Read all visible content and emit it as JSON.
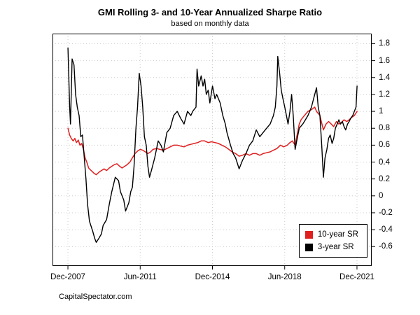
{
  "page": {
    "footer": "CapitalSpectator.com"
  },
  "chart_data": {
    "type": "line",
    "title": "GMI Rolling 3- and 10-Year Annualized Sharpe Ratio",
    "subtitle": "based on monthly data",
    "xlabel": "",
    "ylabel": "",
    "grid": true,
    "legend_position": "bottom-right",
    "xlim": [
      2007.17,
      2022.63
    ],
    "ylim": [
      -0.83,
      1.92
    ],
    "x_ticks": [
      {
        "label": "Dec-2007",
        "x": 2007.917
      },
      {
        "label": "Jun-2011",
        "x": 2011.417
      },
      {
        "label": "Dec-2014",
        "x": 2014.917
      },
      {
        "label": "Jun-2018",
        "x": 2018.417
      },
      {
        "label": "Dec-2021",
        "x": 2021.917
      }
    ],
    "y_ticks": [
      {
        "label": "1.8",
        "y": 1.8
      },
      {
        "label": "1.6",
        "y": 1.6
      },
      {
        "label": "1.4",
        "y": 1.4
      },
      {
        "label": "1.2",
        "y": 1.2
      },
      {
        "label": "1",
        "y": 1.0
      },
      {
        "label": "0.8",
        "y": 0.8
      },
      {
        "label": "0.6",
        "y": 0.6
      },
      {
        "label": "0.4",
        "y": 0.4
      },
      {
        "label": "0.2",
        "y": 0.2
      },
      {
        "label": "0",
        "y": 0.0
      },
      {
        "label": "-0.2",
        "y": -0.2
      },
      {
        "label": "-0.4",
        "y": -0.4
      },
      {
        "label": "-0.6",
        "y": -0.6
      }
    ],
    "series": [
      {
        "name": "10-year SR",
        "color": "#e01f1f",
        "line_width": 1.5,
        "x": [
          2007.92,
          2008.0,
          2008.08,
          2008.17,
          2008.25,
          2008.33,
          2008.42,
          2008.5,
          2008.58,
          2008.67,
          2008.75,
          2008.83,
          2008.92,
          2009.04,
          2009.17,
          2009.29,
          2009.42,
          2009.54,
          2009.67,
          2009.79,
          2009.92,
          2010.04,
          2010.17,
          2010.29,
          2010.42,
          2010.54,
          2010.67,
          2010.79,
          2010.92,
          2011.04,
          2011.17,
          2011.29,
          2011.42,
          2011.54,
          2011.67,
          2011.79,
          2011.92,
          2012.04,
          2012.21,
          2012.37,
          2012.54,
          2012.71,
          2012.87,
          2013.04,
          2013.21,
          2013.37,
          2013.54,
          2013.71,
          2013.87,
          2014.04,
          2014.21,
          2014.37,
          2014.54,
          2014.71,
          2014.87,
          2015.04,
          2015.21,
          2015.37,
          2015.54,
          2015.71,
          2015.87,
          2016.04,
          2016.21,
          2016.37,
          2016.54,
          2016.71,
          2016.87,
          2017.04,
          2017.21,
          2017.37,
          2017.54,
          2017.71,
          2017.87,
          2018.04,
          2018.21,
          2018.37,
          2018.54,
          2018.67,
          2018.79,
          2018.92,
          2019.04,
          2019.12,
          2019.21,
          2019.37,
          2019.54,
          2019.71,
          2019.87,
          2019.96,
          2020.12,
          2020.29,
          2020.42,
          2020.54,
          2020.67,
          2020.79,
          2020.92,
          2021.04,
          2021.17,
          2021.29,
          2021.42,
          2021.54,
          2021.67,
          2021.79,
          2021.92
        ],
        "values": [
          0.8,
          0.72,
          0.68,
          0.65,
          0.68,
          0.63,
          0.66,
          0.6,
          0.62,
          0.55,
          0.45,
          0.4,
          0.33,
          0.3,
          0.27,
          0.25,
          0.28,
          0.3,
          0.32,
          0.3,
          0.33,
          0.35,
          0.37,
          0.38,
          0.35,
          0.33,
          0.35,
          0.37,
          0.4,
          0.45,
          0.5,
          0.53,
          0.55,
          0.54,
          0.52,
          0.5,
          0.52,
          0.55,
          0.56,
          0.55,
          0.54,
          0.56,
          0.58,
          0.6,
          0.6,
          0.59,
          0.58,
          0.6,
          0.61,
          0.62,
          0.63,
          0.65,
          0.65,
          0.63,
          0.64,
          0.63,
          0.62,
          0.6,
          0.58,
          0.55,
          0.52,
          0.5,
          0.47,
          0.48,
          0.5,
          0.48,
          0.5,
          0.5,
          0.48,
          0.5,
          0.51,
          0.52,
          0.54,
          0.56,
          0.6,
          0.58,
          0.6,
          0.63,
          0.65,
          0.6,
          0.75,
          0.85,
          0.9,
          0.95,
          1.0,
          1.02,
          1.05,
          1.0,
          0.95,
          0.78,
          0.85,
          0.88,
          0.85,
          0.82,
          0.88,
          0.85,
          0.87,
          0.9,
          0.88,
          0.9,
          0.93,
          0.95,
          1.0
        ]
      },
      {
        "name": "3-year SR",
        "color": "#000000",
        "line_width": 1.4,
        "x": [
          2007.92,
          2008.0,
          2008.04,
          2008.12,
          2008.21,
          2008.29,
          2008.37,
          2008.46,
          2008.54,
          2008.62,
          2008.71,
          2008.79,
          2008.87,
          2008.96,
          2009.12,
          2009.21,
          2009.29,
          2009.42,
          2009.54,
          2009.62,
          2009.79,
          2009.92,
          2010.04,
          2010.21,
          2010.37,
          2010.46,
          2010.62,
          2010.71,
          2010.87,
          2010.96,
          2011.04,
          2011.12,
          2011.21,
          2011.29,
          2011.37,
          2011.46,
          2011.54,
          2011.62,
          2011.71,
          2011.79,
          2011.87,
          2011.96,
          2012.12,
          2012.29,
          2012.42,
          2012.54,
          2012.71,
          2012.87,
          2013.04,
          2013.21,
          2013.37,
          2013.54,
          2013.71,
          2013.87,
          2013.96,
          2014.12,
          2014.17,
          2014.25,
          2014.37,
          2014.46,
          2014.54,
          2014.62,
          2014.71,
          2014.79,
          2014.92,
          2015.04,
          2015.12,
          2015.29,
          2015.42,
          2015.54,
          2015.62,
          2015.79,
          2015.92,
          2016.04,
          2016.21,
          2016.37,
          2016.54,
          2016.71,
          2016.87,
          2017.04,
          2017.21,
          2017.37,
          2017.54,
          2017.71,
          2017.87,
          2017.96,
          2018.04,
          2018.08,
          2018.17,
          2018.25,
          2018.33,
          2018.42,
          2018.5,
          2018.58,
          2018.67,
          2018.75,
          2018.83,
          2018.92,
          2019.04,
          2019.12,
          2019.29,
          2019.42,
          2019.54,
          2019.71,
          2019.87,
          2019.96,
          2020.04,
          2020.12,
          2020.21,
          2020.29,
          2020.37,
          2020.46,
          2020.54,
          2020.62,
          2020.71,
          2020.79,
          2020.87,
          2020.96,
          2021.04,
          2021.12,
          2021.21,
          2021.29,
          2021.37,
          2021.46,
          2021.54,
          2021.62,
          2021.71,
          2021.79,
          2021.87,
          2021.92
        ],
        "values": [
          1.75,
          1.05,
          0.85,
          1.62,
          1.55,
          1.2,
          1.05,
          0.95,
          0.7,
          0.72,
          0.45,
          0.2,
          -0.1,
          -0.3,
          -0.42,
          -0.5,
          -0.55,
          -0.5,
          -0.45,
          -0.35,
          -0.28,
          -0.1,
          0.05,
          0.22,
          0.18,
          0.05,
          -0.05,
          -0.18,
          -0.08,
          0.05,
          0.1,
          0.35,
          0.8,
          1.05,
          1.45,
          1.3,
          1.05,
          0.7,
          0.6,
          0.35,
          0.22,
          0.3,
          0.45,
          0.65,
          0.6,
          0.52,
          0.75,
          0.8,
          0.95,
          1.0,
          0.92,
          0.85,
          1.0,
          0.95,
          1.0,
          1.05,
          1.5,
          1.3,
          1.42,
          1.3,
          1.38,
          1.2,
          1.25,
          1.1,
          1.3,
          1.15,
          1.2,
          1.1,
          0.95,
          0.85,
          0.75,
          0.6,
          0.5,
          0.45,
          0.32,
          0.42,
          0.5,
          0.6,
          0.65,
          0.78,
          0.7,
          0.75,
          0.8,
          0.85,
          0.95,
          1.05,
          1.3,
          1.65,
          1.45,
          1.25,
          1.15,
          1.05,
          0.95,
          0.85,
          1.0,
          1.2,
          0.95,
          0.55,
          0.7,
          0.8,
          0.85,
          0.9,
          0.95,
          1.05,
          1.2,
          1.28,
          1.05,
          0.95,
          0.6,
          0.22,
          0.45,
          0.55,
          0.68,
          0.72,
          0.62,
          0.68,
          0.8,
          0.85,
          0.9,
          0.85,
          0.88,
          0.82,
          0.78,
          0.85,
          0.88,
          0.92,
          0.95,
          1.0,
          1.05,
          1.3
        ]
      }
    ]
  }
}
